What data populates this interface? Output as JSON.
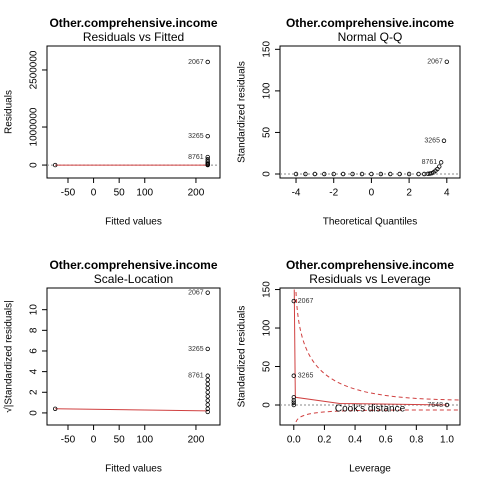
{
  "chart_data": [
    {
      "type": "scatter",
      "title": "Other.comprehensive.income",
      "subtitle": "Residuals vs Fitted",
      "xlabel": "Fitted values",
      "ylabel": "Residuals",
      "xlim": [
        -91,
        247
      ],
      "ylim": [
        -340000,
        3130000
      ],
      "xticks": [
        -50,
        0,
        50,
        100,
        200
      ],
      "yticks": [
        0,
        1000000,
        2500000
      ],
      "series": [
        {
          "x": [
            -75,
            223,
            223,
            223,
            223,
            223,
            223,
            223,
            223,
            223
          ],
          "values": [
            0,
            2710000,
            760000,
            210000,
            150000,
            100000,
            60000,
            30000,
            10000,
            0
          ],
          "labels": [
            null,
            "2067",
            "3265",
            "8761",
            null,
            null,
            null,
            null,
            null,
            null
          ]
        }
      ],
      "smooth": {
        "x": [
          -75,
          223
        ],
        "values": [
          0,
          0
        ],
        "color": "#d04040"
      },
      "hline": 0
    },
    {
      "type": "scatter",
      "title": "Other.comprehensive.income",
      "subtitle": "Normal Q-Q",
      "xlabel": "Theoretical Quantiles",
      "ylabel": "Standardized residuals",
      "xlim": [
        -4.85,
        4.7
      ],
      "ylim": [
        -4.8,
        154
      ],
      "xticks": [
        -4,
        -2,
        0,
        2,
        4
      ],
      "yticks": [
        0,
        50,
        100,
        150
      ],
      "series": [
        {
          "x": [
            -4,
            -3.5,
            -3,
            -2.5,
            -2,
            -1.5,
            -1,
            -0.5,
            0,
            0.5,
            1,
            1.5,
            2,
            2.5,
            2.8,
            3,
            3.1,
            3.2,
            3.3,
            3.4,
            3.5,
            3.6,
            3.7,
            3.85,
            4
          ],
          "values": [
            0,
            0,
            0,
            0,
            0,
            0,
            0,
            0,
            0,
            0,
            0,
            0,
            0,
            0,
            0,
            0.2,
            0.5,
            1,
            2,
            4,
            6,
            9,
            14,
            40,
            135
          ],
          "labels": [
            null,
            null,
            null,
            null,
            null,
            null,
            null,
            null,
            null,
            null,
            null,
            null,
            null,
            null,
            null,
            null,
            null,
            null,
            null,
            null,
            null,
            null,
            "8761",
            "3265",
            "2067"
          ]
        }
      ],
      "hline": 0
    },
    {
      "type": "scatter",
      "title": "Other.comprehensive.income",
      "subtitle": "Scale-Location",
      "xlabel": "Fitted values",
      "ylabel": "√|Standardized residuals|",
      "xlim": [
        -91,
        247
      ],
      "ylim": [
        -1.17,
        12.1
      ],
      "xticks": [
        -50,
        0,
        50,
        100,
        200
      ],
      "yticks": [
        0,
        2,
        4,
        6,
        8,
        10
      ],
      "series": [
        {
          "x": [
            -75,
            223,
            223,
            223,
            223,
            223,
            223,
            223,
            223,
            223,
            223,
            223,
            223
          ],
          "values": [
            0.4,
            11.65,
            6.2,
            3.6,
            3.2,
            2.8,
            2.4,
            2.0,
            1.6,
            1.2,
            0.8,
            0.4,
            0.1
          ],
          "labels": [
            null,
            "2067",
            "3265",
            "8761",
            null,
            null,
            null,
            null,
            null,
            null,
            null,
            null,
            null
          ]
        }
      ],
      "smooth": {
        "x": [
          -75,
          223
        ],
        "values": [
          0.4,
          0.2
        ],
        "color": "#d04040"
      }
    },
    {
      "type": "scatter",
      "title": "Other.comprehensive.income",
      "subtitle": "Residuals vs Leverage",
      "xlabel": "Leverage",
      "ylabel": "Standardized residuals",
      "xlim": [
        -0.09,
        1.085
      ],
      "ylim": [
        -26,
        152
      ],
      "xticks": [
        {
          "value": 0,
          "label": "0.0"
        },
        0.2,
        0.4,
        0.6,
        0.8,
        {
          "value": 1,
          "label": "1.0"
        }
      ],
      "yticks": [
        0,
        50,
        100,
        150
      ],
      "series": [
        {
          "x": [
            0,
            0,
            0,
            0,
            0,
            0,
            1
          ],
          "values": [
            135,
            38,
            10,
            6,
            3,
            0,
            0
          ],
          "labels": [
            "2067",
            "3265",
            null,
            null,
            null,
            null,
            "7648"
          ]
        }
      ],
      "smooth": {
        "x": [
          0.003,
          0.01,
          0.3,
          1
        ],
        "values": [
          150,
          10,
          2,
          0
        ],
        "color": "#d04040"
      },
      "hline": 0,
      "annotation": "Cook's distance"
    }
  ]
}
